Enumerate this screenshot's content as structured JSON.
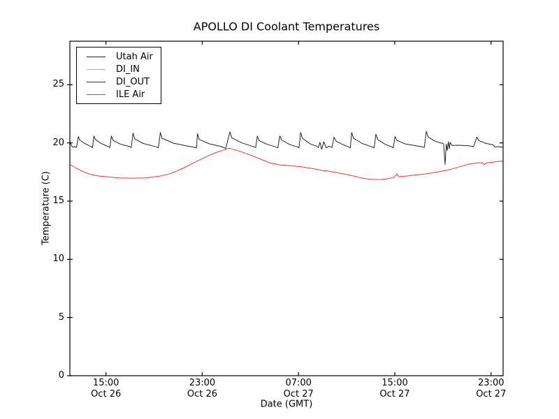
{
  "page": {
    "background": "#ffffff"
  },
  "chart_data": {
    "type": "line",
    "title": "APOLLO DI Coolant Temperatures",
    "xlabel": "Date (GMT)",
    "ylabel": "Temperature (C)",
    "grid": false,
    "legend_position": "upper-left",
    "axis_color": "#000000",
    "x_unit": "hours",
    "x_origin_label": "Oct 26 12:00 GMT",
    "xlim": [
      0,
      36
    ],
    "ylim": [
      0,
      28.74
    ],
    "y_ticks": [
      0,
      5,
      10,
      15,
      20,
      25
    ],
    "x_ticks": [
      {
        "t": 3,
        "time": "15:00",
        "date": "Oct 26"
      },
      {
        "t": 11,
        "time": "23:00",
        "date": "Oct 26"
      },
      {
        "t": 19,
        "time": "07:00",
        "date": "Oct 27"
      },
      {
        "t": 27,
        "time": "15:00",
        "date": "Oct 27"
      },
      {
        "t": 35,
        "time": "23:00",
        "date": "Oct 27"
      }
    ],
    "series": [
      {
        "name": "Utah Air",
        "color": "#222222",
        "visible": true,
        "points": [
          [
            0,
            20.1
          ],
          [
            0.12,
            19.8
          ],
          [
            0.25,
            19.62
          ],
          [
            0.4,
            19.68
          ],
          [
            0.55,
            19.62
          ],
          [
            0.7,
            20.55
          ],
          [
            0.82,
            20.25
          ],
          [
            1.25,
            19.95
          ],
          [
            1.72,
            19.7
          ],
          [
            1.88,
            19.6
          ],
          [
            2.0,
            20.6
          ],
          [
            2.12,
            20.3
          ],
          [
            2.6,
            19.95
          ],
          [
            3.2,
            19.68
          ],
          [
            3.32,
            19.6
          ],
          [
            3.45,
            20.6
          ],
          [
            3.6,
            20.2
          ],
          [
            4.2,
            19.9
          ],
          [
            5.0,
            19.68
          ],
          [
            5.1,
            19.6
          ],
          [
            5.25,
            20.85
          ],
          [
            5.38,
            20.35
          ],
          [
            6.1,
            19.95
          ],
          [
            7.2,
            19.66
          ],
          [
            7.35,
            19.58
          ],
          [
            7.52,
            20.9
          ],
          [
            7.66,
            20.4
          ],
          [
            8.6,
            19.98
          ],
          [
            9.8,
            19.72
          ],
          [
            10.45,
            19.6
          ],
          [
            10.52,
            19.56
          ],
          [
            10.6,
            20.8
          ],
          [
            10.74,
            20.3
          ],
          [
            11.6,
            19.92
          ],
          [
            12.6,
            19.68
          ],
          [
            12.95,
            19.52
          ],
          [
            13.3,
            20.95
          ],
          [
            13.45,
            20.45
          ],
          [
            14.3,
            20.0
          ],
          [
            15.3,
            19.66
          ],
          [
            15.44,
            19.6
          ],
          [
            15.58,
            20.6
          ],
          [
            15.72,
            20.2
          ],
          [
            16.4,
            19.88
          ],
          [
            17.15,
            19.64
          ],
          [
            17.28,
            19.58
          ],
          [
            17.44,
            20.6
          ],
          [
            17.6,
            20.25
          ],
          [
            18.3,
            19.85
          ],
          [
            18.95,
            19.64
          ],
          [
            19.04,
            19.58
          ],
          [
            19.18,
            20.9
          ],
          [
            19.32,
            20.4
          ],
          [
            20.0,
            19.9
          ],
          [
            20.5,
            19.72
          ],
          [
            20.64,
            19.6
          ],
          [
            20.78,
            20.05
          ],
          [
            20.92,
            19.45
          ],
          [
            21.1,
            20.1
          ],
          [
            21.3,
            19.58
          ],
          [
            21.55,
            19.72
          ],
          [
            21.78,
            19.6
          ],
          [
            21.95,
            20.5
          ],
          [
            22.12,
            20.15
          ],
          [
            22.7,
            19.85
          ],
          [
            23.2,
            19.64
          ],
          [
            23.3,
            19.58
          ],
          [
            23.42,
            20.9
          ],
          [
            23.56,
            20.4
          ],
          [
            24.3,
            19.95
          ],
          [
            25.15,
            19.64
          ],
          [
            25.28,
            19.58
          ],
          [
            25.43,
            20.75
          ],
          [
            25.58,
            20.3
          ],
          [
            26.2,
            19.88
          ],
          [
            26.8,
            19.64
          ],
          [
            26.88,
            19.58
          ],
          [
            27.02,
            20.55
          ],
          [
            27.2,
            20.2
          ],
          [
            27.9,
            19.9
          ],
          [
            29.3,
            19.66
          ],
          [
            29.45,
            19.6
          ],
          [
            29.62,
            21.0
          ],
          [
            29.78,
            20.5
          ],
          [
            30.35,
            20.15
          ],
          [
            30.85,
            19.98
          ],
          [
            30.95,
            20.0
          ],
          [
            31.05,
            19.9
          ],
          [
            31.18,
            18.15
          ],
          [
            31.28,
            19.9
          ],
          [
            31.36,
            19.35
          ],
          [
            31.45,
            20.1
          ],
          [
            31.53,
            19.5
          ],
          [
            31.6,
            20.05
          ],
          [
            31.75,
            19.78
          ],
          [
            32.3,
            19.8
          ],
          [
            33.1,
            19.76
          ],
          [
            33.55,
            19.7
          ],
          [
            33.82,
            20.5
          ],
          [
            33.98,
            20.2
          ],
          [
            34.6,
            19.95
          ],
          [
            35.15,
            19.85
          ],
          [
            35.32,
            19.65
          ],
          [
            35.7,
            19.68
          ],
          [
            36,
            19.62
          ]
        ]
      },
      {
        "name": "DI_IN",
        "color": "#ffa500",
        "visible": false,
        "points": []
      },
      {
        "name": "DI_OUT",
        "color": "#800080",
        "visible": false,
        "points": []
      },
      {
        "name": "ILE Air",
        "color": "#ff3030",
        "visible": true,
        "points": [
          [
            0,
            18.15
          ],
          [
            0.5,
            17.85
          ],
          [
            0.95,
            17.6
          ],
          [
            1.6,
            17.32
          ],
          [
            2.3,
            17.18
          ],
          [
            2.95,
            17.1
          ],
          [
            4.1,
            17.0
          ],
          [
            5.2,
            16.97
          ],
          [
            6.3,
            17.0
          ],
          [
            7.0,
            17.08
          ],
          [
            7.6,
            17.18
          ],
          [
            8.2,
            17.32
          ],
          [
            8.8,
            17.55
          ],
          [
            9.4,
            17.82
          ],
          [
            10.4,
            18.35
          ],
          [
            11.3,
            18.8
          ],
          [
            12.2,
            19.2
          ],
          [
            12.9,
            19.42
          ],
          [
            13.2,
            19.55
          ],
          [
            13.7,
            19.42
          ],
          [
            14.3,
            19.22
          ],
          [
            15.1,
            18.92
          ],
          [
            16.3,
            18.42
          ],
          [
            16.6,
            18.28
          ],
          [
            17.4,
            18.12
          ],
          [
            18.3,
            18.05
          ],
          [
            19.2,
            17.95
          ],
          [
            20.3,
            17.78
          ],
          [
            21.0,
            17.62
          ],
          [
            21.4,
            17.6
          ],
          [
            22.2,
            17.45
          ],
          [
            23.2,
            17.25
          ],
          [
            24.2,
            17.0
          ],
          [
            25.0,
            16.88
          ],
          [
            25.7,
            16.85
          ],
          [
            26.4,
            16.92
          ],
          [
            26.95,
            17.05
          ],
          [
            27.18,
            17.32
          ],
          [
            27.35,
            17.1
          ],
          [
            28.0,
            17.16
          ],
          [
            28.9,
            17.26
          ],
          [
            29.7,
            17.36
          ],
          [
            30.8,
            17.55
          ],
          [
            31.6,
            17.72
          ],
          [
            32.4,
            17.95
          ],
          [
            33.2,
            18.2
          ],
          [
            33.9,
            18.28
          ],
          [
            34.3,
            18.3
          ],
          [
            34.45,
            18.14
          ],
          [
            34.62,
            18.28
          ],
          [
            35.2,
            18.36
          ],
          [
            36,
            18.45
          ]
        ]
      }
    ]
  }
}
